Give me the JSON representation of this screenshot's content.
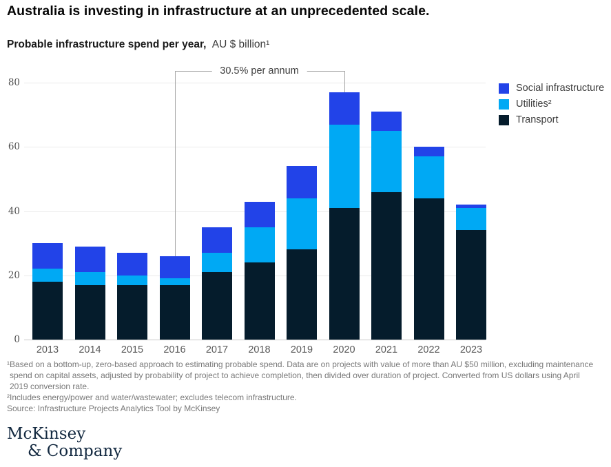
{
  "page": {
    "title": "Australia is investing in infrastructure at an unprecedented scale.",
    "subtitle_bold": "Probable infrastructure spend per year,",
    "subtitle_unit": "AU $ billion¹"
  },
  "chart_data": {
    "type": "bar",
    "stacked": true,
    "title": "Probable infrastructure spend per year, AU $ billion",
    "categories": [
      "2013",
      "2014",
      "2015",
      "2016",
      "2017",
      "2018",
      "2019",
      "2020",
      "2021",
      "2022",
      "2023"
    ],
    "series": [
      {
        "name": "Social infrastructure",
        "color": "#2243e8",
        "values": [
          8,
          8,
          7,
          7,
          8,
          8,
          10,
          10,
          6,
          3,
          1
        ]
      },
      {
        "name": "Utilities²",
        "color": "#00a9f4",
        "values": [
          4,
          4,
          3,
          2,
          6,
          11,
          16,
          26,
          19,
          13,
          7
        ]
      },
      {
        "name": "Transport",
        "color": "#051c2c",
        "values": [
          18,
          17,
          17,
          17,
          21,
          24,
          28,
          41,
          46,
          44,
          34
        ]
      }
    ],
    "stack_bottom_to_top": [
      "Transport",
      "Utilities²",
      "Social infrastructure"
    ],
    "totals": [
      30,
      29,
      27,
      26,
      35,
      43,
      54,
      77,
      71,
      60,
      42
    ],
    "xlabel": "",
    "ylabel": "",
    "ylim": [
      0,
      80
    ],
    "yticks": [
      0,
      20,
      40,
      60,
      80
    ],
    "grid": true,
    "legend_position": "right",
    "annotation": {
      "label": "30.5% per annum",
      "from": "2016",
      "to": "2020"
    }
  },
  "notes": {
    "footnote1": "¹Based on a bottom-up, zero-based approach to estimating probable spend. Data are on projects with value of more than AU $50 million, excluding maintenance spend on capital assets, adjusted by probability of project to achieve completion, then divided over duration of project. Converted from US dollars using April 2019 conversion rate.",
    "footnote2": "²Includes energy/power and water/wastewater; excludes telecom infrastructure.",
    "source": "Source: Infrastructure Projects Analytics Tool by McKinsey"
  },
  "logo": {
    "line1": "McKinsey",
    "line2": "& Company"
  },
  "colors": {
    "social_infrastructure": "#2243e8",
    "utilities": "#00a9f4",
    "transport": "#051c2c",
    "gridline": "#eaeaea",
    "baseline": "#c7c7c7",
    "annotation_line": "#a8a8a8"
  }
}
